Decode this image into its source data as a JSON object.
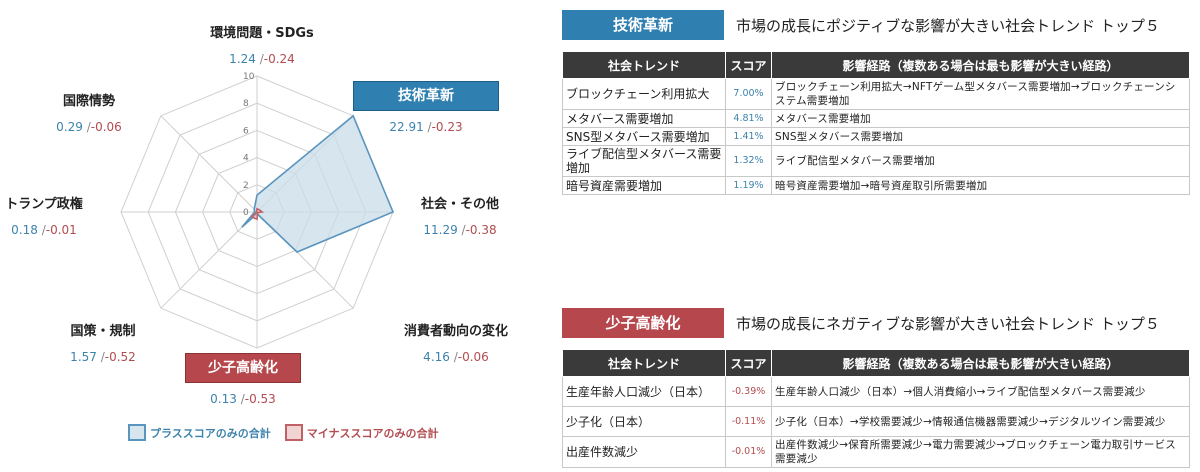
{
  "chart_data": {
    "type": "radar",
    "rlim": [
      0,
      10
    ],
    "ticks": [
      "0",
      "2",
      "4",
      "6",
      "8",
      "10"
    ],
    "axes": [
      {
        "label": "環境問題・SDGs",
        "plus": "1.24",
        "minus": "-0.24",
        "highlight": ""
      },
      {
        "label": "技術革新",
        "plus": "22.91",
        "minus": "-0.23",
        "highlight": "positive"
      },
      {
        "label": "社会・その他",
        "plus": "11.29",
        "minus": "-0.38",
        "highlight": ""
      },
      {
        "label": "消費者動向の変化",
        "plus": "4.16",
        "minus": "-0.06",
        "highlight": ""
      },
      {
        "label": "少子高齢化",
        "plus": "0.13",
        "minus": "-0.53",
        "highlight": "negative"
      },
      {
        "label": "国策・規制",
        "plus": "1.57",
        "minus": "-0.52",
        "highlight": ""
      },
      {
        "label": "トランプ政権",
        "plus": "0.18",
        "minus": "-0.01",
        "highlight": ""
      },
      {
        "label": "国際情勢",
        "plus": "0.29",
        "minus": "-0.06",
        "highlight": ""
      }
    ],
    "series": [
      {
        "name": "プラススコアのみの合計",
        "values": [
          1.24,
          22.91,
          11.29,
          4.16,
          0.13,
          1.57,
          0.18,
          0.29
        ],
        "color": "#5a95bf",
        "fill": "#c9dce8"
      },
      {
        "name": "マイナススコアのみの合計",
        "values": [
          0.24,
          0.23,
          0.38,
          0.06,
          0.53,
          0.52,
          0.01,
          0.06
        ],
        "color": "#c06064",
        "fill": "#e9c4c4"
      }
    ],
    "value_separator": "/",
    "colors": {
      "positive": "#3d82ad",
      "negative": "#b24c50",
      "grid": "#cfcfcf"
    }
  },
  "positive_section": {
    "badge": "技術革新",
    "title": "市場の成長にポジティブな影響が大きい社会トレンド トップ５",
    "headers": [
      "社会トレンド",
      "スコア",
      "影響経路（複数ある場合は最も影響が大きい経路）"
    ],
    "rows": [
      {
        "trend": "ブロックチェーン利用拡大",
        "score": "7.00%",
        "path": "ブロックチェーン利用拡大→NFTゲーム型メタバース需要増加→ブロックチェーンシステム需要増加"
      },
      {
        "trend": "メタバース需要増加",
        "score": "4.81%",
        "path": "メタバース需要増加"
      },
      {
        "trend": "SNS型メタバース需要増加",
        "score": "1.41%",
        "path": "SNS型メタバース需要増加"
      },
      {
        "trend": "ライブ配信型メタバース需要増加",
        "score": "1.32%",
        "path": "ライブ配信型メタバース需要増加"
      },
      {
        "trend": "暗号資産需要増加",
        "score": "1.19%",
        "path": "暗号資産需要増加→暗号資産取引所需要増加"
      }
    ]
  },
  "negative_section": {
    "badge": "少子高齢化",
    "title": "市場の成長にネガティブな影響が大きい社会トレンド トップ５",
    "headers": [
      "社会トレンド",
      "スコア",
      "影響経路（複数ある場合は最も影響が大きい経路）"
    ],
    "rows": [
      {
        "trend": "生産年齢人口減少（日本）",
        "score": "-0.39%",
        "path": "生産年齢人口減少（日本）→個人消費縮小→ライブ配信型メタバース需要減少"
      },
      {
        "trend": "少子化（日本）",
        "score": "-0.11%",
        "path": "少子化（日本）→学校需要減少→情報通信機器需要減少→デジタルツイン需要減少"
      },
      {
        "trend": "出産件数減少",
        "score": "-0.01%",
        "path": "出産件数減少→保育所需要減少→電力需要減少→ブロックチェーン電力取引サービス需要減少"
      }
    ]
  }
}
